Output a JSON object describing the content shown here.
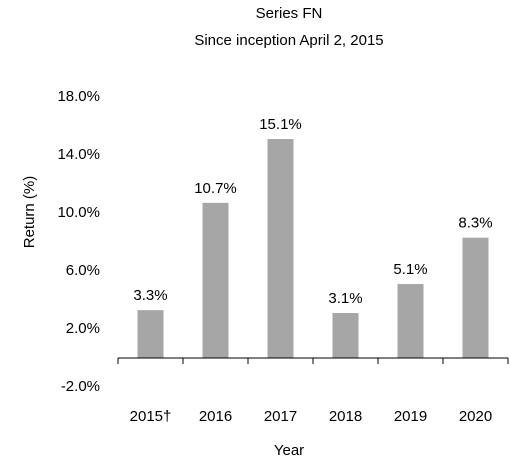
{
  "chart_data": {
    "type": "bar",
    "title": "Series FN",
    "subtitle": "Since inception April 2, 2015",
    "x_label": "Year",
    "y_label": "Return (%)",
    "categories": [
      "2015†",
      "2016",
      "2017",
      "2018",
      "2019",
      "2020"
    ],
    "values": [
      3.3,
      10.7,
      15.1,
      3.1,
      5.1,
      8.3
    ],
    "value_labels": [
      "3.3%",
      "10.7%",
      "15.1%",
      "3.1%",
      "5.1%",
      "8.3%"
    ],
    "color": "#a6a6a6",
    "ylim": [
      -2,
      18
    ],
    "yticks": [
      {
        "value": -2,
        "label": "-2.0%"
      },
      {
        "value": 2,
        "label": "2.0%"
      },
      {
        "value": 6,
        "label": "6.0%"
      },
      {
        "value": 10,
        "label": "10.0%"
      },
      {
        "value": 14,
        "label": "14.0%"
      },
      {
        "value": 18,
        "label": "18.0%"
      }
    ],
    "grid": false
  }
}
